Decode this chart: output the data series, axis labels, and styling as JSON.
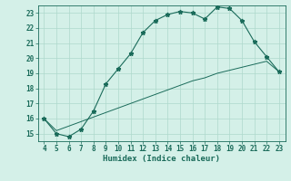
{
  "x_data": [
    4,
    5,
    6,
    7,
    8,
    9,
    10,
    11,
    12,
    13,
    14,
    15,
    16,
    17,
    18,
    19,
    20,
    21,
    22,
    23
  ],
  "y_data": [
    16,
    15,
    14.8,
    15.3,
    16.5,
    18.3,
    19.3,
    20.3,
    21.7,
    22.5,
    22.9,
    23.1,
    23.0,
    22.6,
    23.4,
    23.3,
    22.5,
    21.1,
    20.1,
    19.1
  ],
  "y_line2": [
    16,
    15.2,
    15.5,
    15.8,
    16.1,
    16.4,
    16.7,
    17.0,
    17.3,
    17.6,
    17.9,
    18.2,
    18.5,
    18.7,
    19.0,
    19.2,
    19.4,
    19.6,
    19.8,
    19.1
  ],
  "xlim": [
    3.5,
    23.5
  ],
  "ylim": [
    14.5,
    23.5
  ],
  "yticks": [
    15,
    16,
    17,
    18,
    19,
    20,
    21,
    22,
    23
  ],
  "xticks": [
    4,
    5,
    6,
    7,
    8,
    9,
    10,
    11,
    12,
    13,
    14,
    15,
    16,
    17,
    18,
    19,
    20,
    21,
    22,
    23
  ],
  "xlabel": "Humidex (Indice chaleur)",
  "line_color": "#1a6b5a",
  "bg_color": "#d4f0e8",
  "grid_color": "#aed8cc",
  "tick_fontsize": 5.5,
  "xlabel_fontsize": 6.5
}
